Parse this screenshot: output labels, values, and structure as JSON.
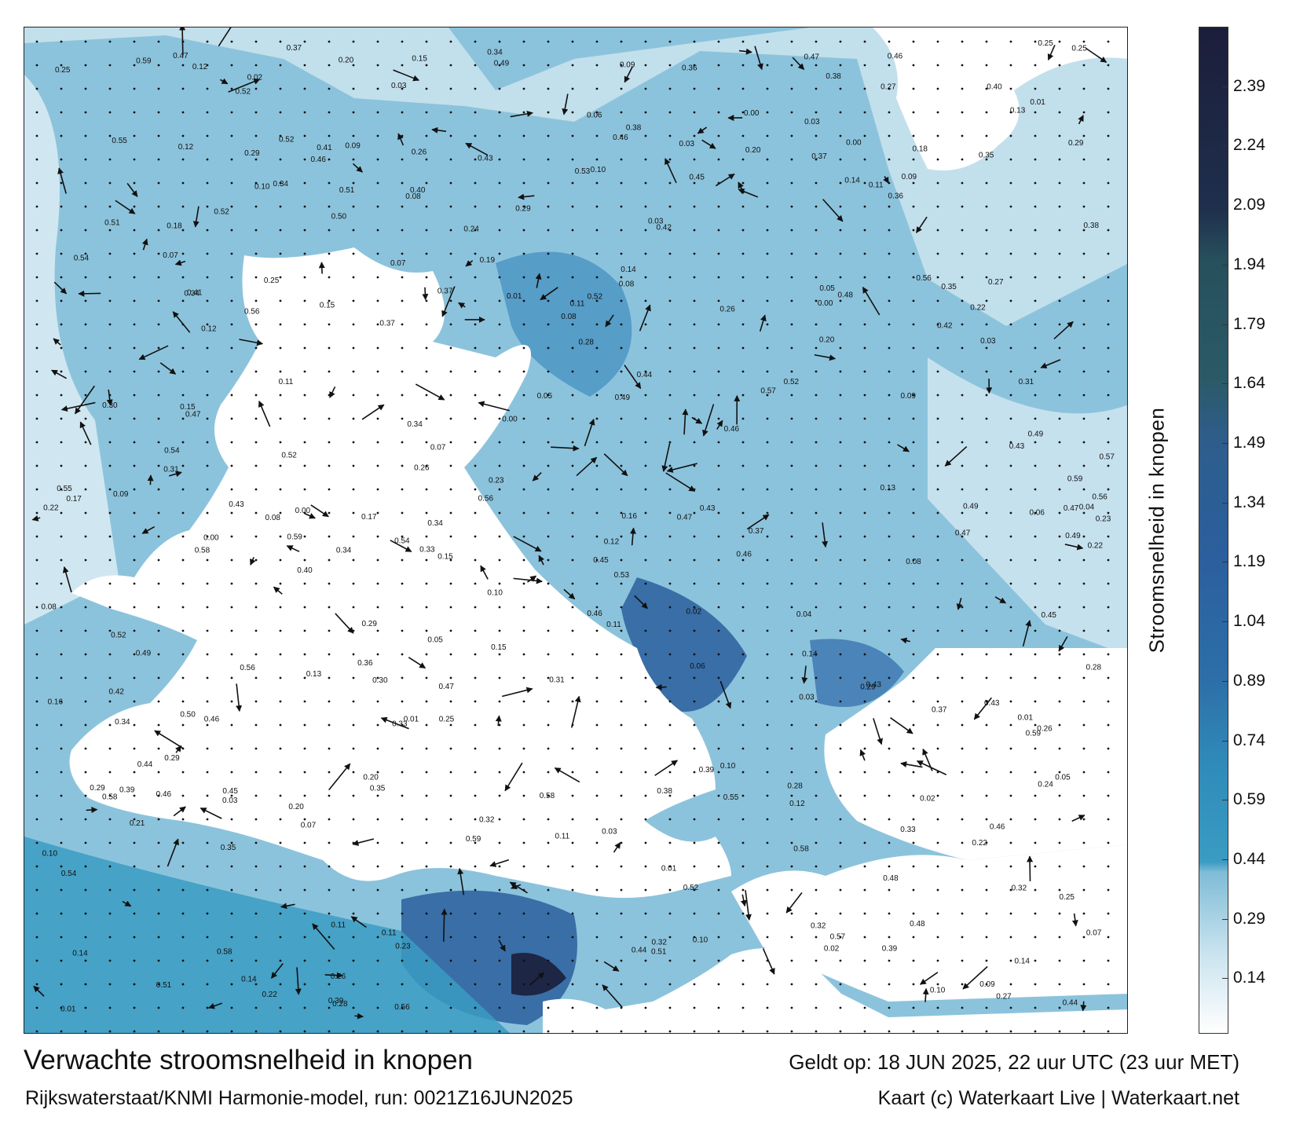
{
  "map": {
    "title": "Verwachte stroomsnelheid in knopen",
    "source": "Rijkswaterstaat/KNMI Harmonie-model, run: 0021Z16JUN2025",
    "valid_time": "Geldt op: 18 JUN 2025, 22 uur UTC (23 uur MET)",
    "credit": "Kaart (c) Waterkaart Live | Waterkaart.net"
  },
  "colorbar": {
    "label": "Stroomsnelheid in knopen",
    "ticks": [
      "2.39",
      "2.24",
      "2.09",
      "1.94",
      "1.79",
      "1.64",
      "1.49",
      "1.34",
      "1.19",
      "1.04",
      "0.89",
      "0.74",
      "0.59",
      "0.44",
      "0.29",
      "0.14"
    ],
    "tick_values": [
      2.39,
      2.24,
      2.09,
      1.94,
      1.79,
      1.64,
      1.49,
      1.34,
      1.19,
      1.04,
      0.89,
      0.74,
      0.59,
      0.44,
      0.29,
      0.14
    ],
    "range": [
      0,
      2.54
    ],
    "colors": {
      "low": "#ffffff",
      "light": "#a9d4e6",
      "mid": "#3a9cc2",
      "blue": "#2b5f9e",
      "teal": "#274f5c",
      "dark": "#1b1e3a"
    }
  }
}
